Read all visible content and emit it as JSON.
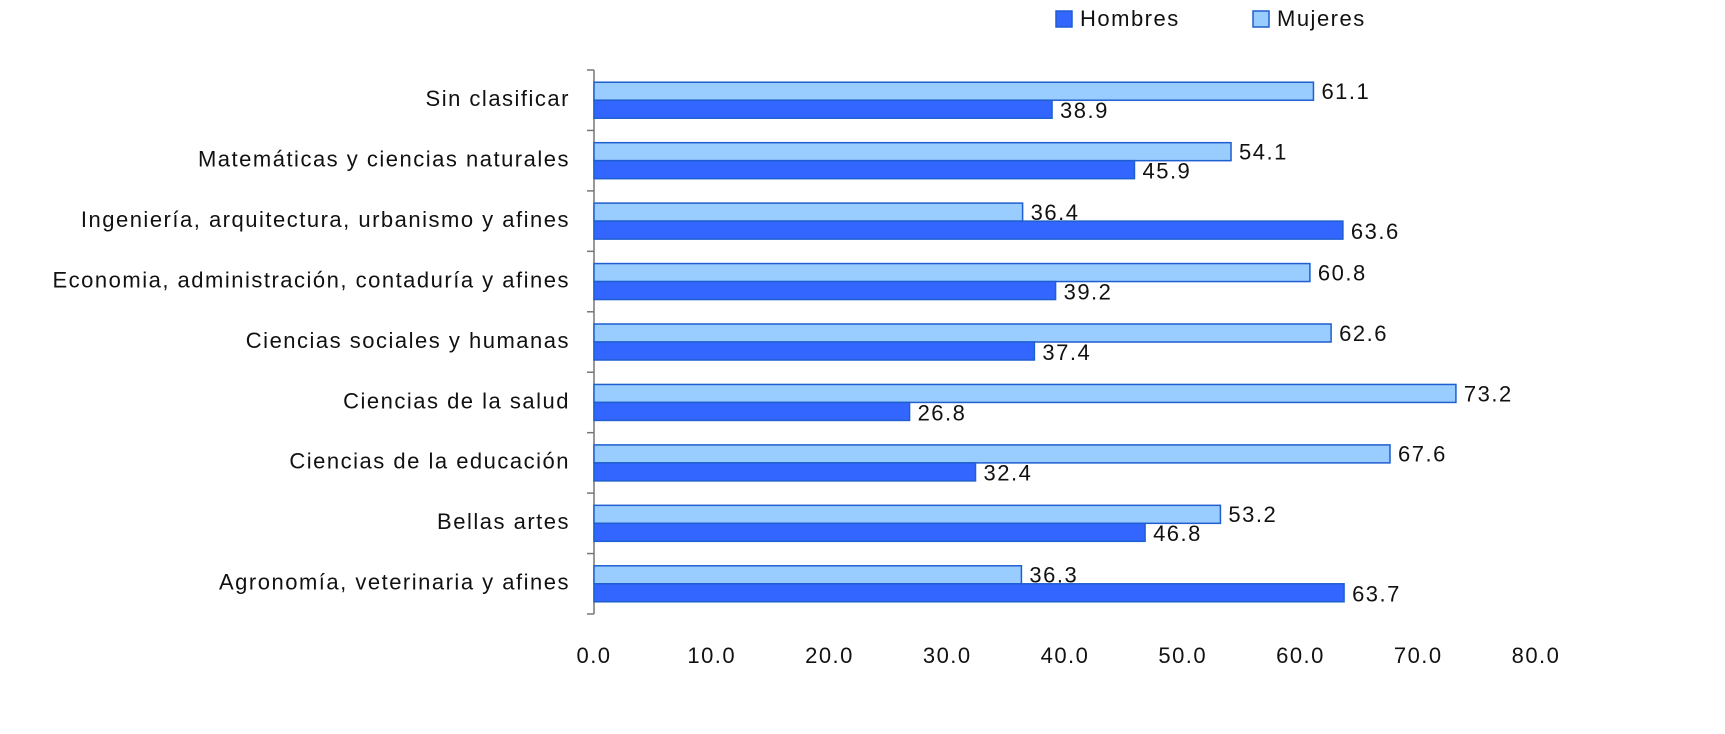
{
  "chart_data": {
    "type": "hbar",
    "categories": [
      "Sin clasificar",
      "Matemáticas y ciencias naturales",
      "Ingeniería, arquitectura, urbanismo y afines",
      "Economia, administración, contaduría y afines",
      "Ciencias sociales y humanas",
      "Ciencias de la salud",
      "Ciencias de la educación",
      "Bellas artes",
      "Agronomía, veterinaria y afines"
    ],
    "series": [
      {
        "name": "Hombres",
        "color": "#3366ff",
        "values": [
          38.9,
          45.9,
          63.6,
          39.2,
          37.4,
          26.8,
          32.4,
          46.8,
          63.7
        ]
      },
      {
        "name": "Mujeres",
        "color": "#99ccff",
        "values": [
          61.1,
          54.1,
          36.4,
          60.8,
          62.6,
          73.2,
          67.6,
          53.2,
          36.3
        ]
      }
    ],
    "xlim": [
      0,
      80
    ],
    "xticks": [
      {
        "value": 0,
        "label": "0.0"
      },
      {
        "value": 10,
        "label": "10.0"
      },
      {
        "value": 20,
        "label": "20.0"
      },
      {
        "value": 30,
        "label": "30.0"
      },
      {
        "value": 40,
        "label": "40.0"
      },
      {
        "value": 50,
        "label": "50.0"
      },
      {
        "value": 60,
        "label": "60.0"
      },
      {
        "value": 70,
        "label": "70.0"
      },
      {
        "value": 80,
        "label": "80.0"
      }
    ],
    "grid": false,
    "legend": "top"
  }
}
